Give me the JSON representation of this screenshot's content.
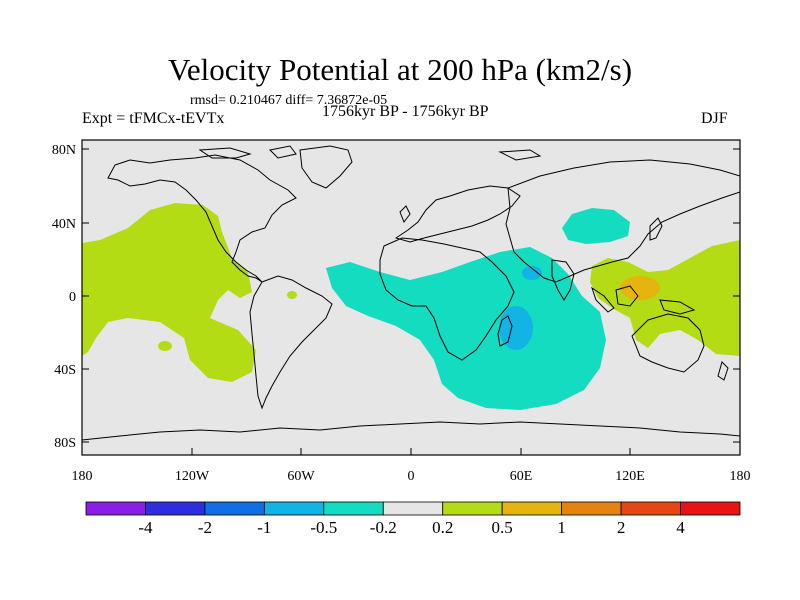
{
  "title": "Velocity Potential at 200 hPa (km2/s)",
  "stats": "rmsd= 0.210467  diff= 7.36872e-05",
  "left_label": "Expt = tFMCx-tEVTx",
  "center_label": "1756kyr BP - 1756kyr BP",
  "right_label": "DJF",
  "lat_labels": [
    "80N",
    "40N",
    "0",
    "40S",
    "80S"
  ],
  "lon_labels": [
    "180",
    "120W",
    "60W",
    "0",
    "60E",
    "120E",
    "180"
  ],
  "colorbar": {
    "colors": [
      "#8a1ee6",
      "#2e2ee0",
      "#0f6fe6",
      "#12b4e6",
      "#14dcc0",
      "#e6e6e6",
      "#b4dc14",
      "#e6b40f",
      "#e6820f",
      "#e64614",
      "#e61414"
    ],
    "labels": [
      "-4",
      "-2",
      "-1",
      "-0.5",
      "-0.2",
      "0.2",
      "0.5",
      "1",
      "2",
      "4"
    ]
  },
  "colors": {
    "land_bg": "#e6e6e6",
    "coast": "#000000"
  }
}
